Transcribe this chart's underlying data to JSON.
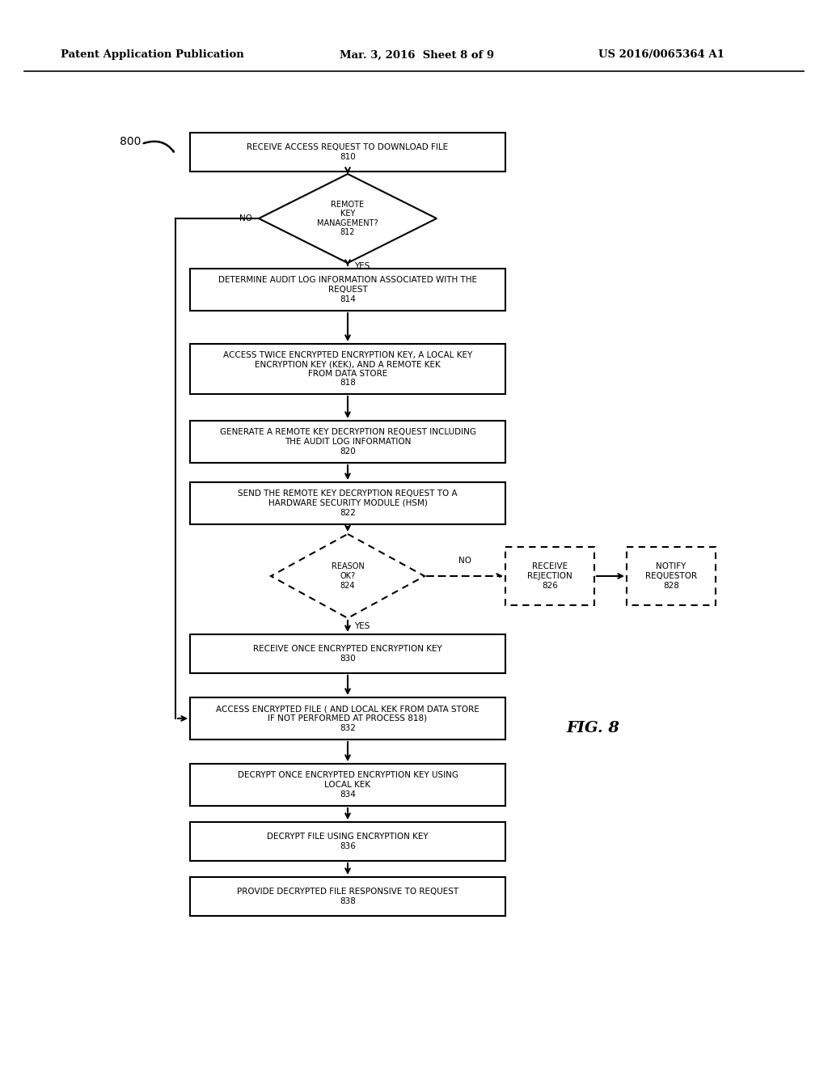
{
  "header_left": "Patent Application Publication",
  "header_center": "Mar. 3, 2016  Sheet 8 of 9",
  "header_right": "US 2016/0065364 A1",
  "fig_label": "FIG. 8",
  "background": "#ffffff"
}
